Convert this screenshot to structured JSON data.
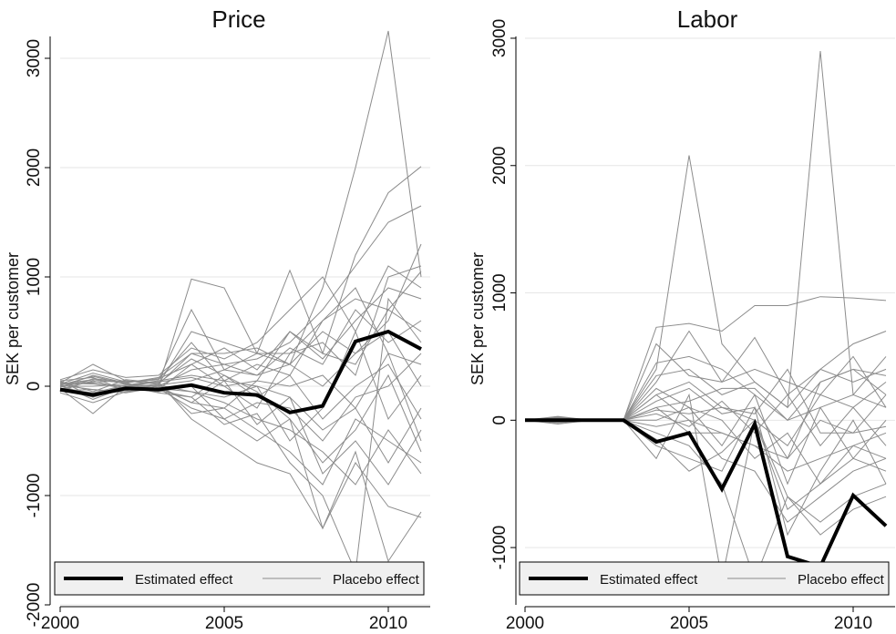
{
  "chart_data": [
    {
      "type": "line",
      "title": "Price",
      "ylabel": "SEK per customer",
      "xlabel": "",
      "x": [
        2000,
        2001,
        2002,
        2003,
        2004,
        2005,
        2006,
        2007,
        2008,
        2009,
        2010,
        2011
      ],
      "xlim": [
        2000,
        2011
      ],
      "ylim": [
        -2000,
        3300
      ],
      "xticks": [
        2000,
        2005,
        2010
      ],
      "yticks": [
        -2000,
        -1000,
        0,
        1000,
        2000,
        3000
      ],
      "grid": true,
      "legend_position": "bottom",
      "series": [
        {
          "name": "Estimated effect",
          "role": "estimated",
          "color": "#000000",
          "values": [
            -30,
            -80,
            -20,
            -30,
            10,
            -60,
            -80,
            -240,
            -180,
            410,
            500,
            340
          ]
        },
        {
          "name": "Placebo effect",
          "role": "placebo",
          "color": "#8c8c8c",
          "values": [
            20,
            120,
            40,
            60,
            700,
            150,
            100,
            200,
            900,
            2000,
            3250,
            1000
          ]
        },
        {
          "values": [
            50,
            -100,
            0,
            0,
            980,
            900,
            300,
            1060,
            300,
            1200,
            1770,
            2010
          ]
        },
        {
          "values": [
            0,
            60,
            30,
            80,
            300,
            200,
            250,
            400,
            700,
            1100,
            1500,
            1650
          ]
        },
        {
          "values": [
            -60,
            -150,
            -50,
            -20,
            -200,
            -300,
            -500,
            -300,
            -1300,
            -600,
            -1600,
            -1150
          ]
        },
        {
          "values": [
            30,
            200,
            50,
            20,
            500,
            400,
            300,
            300,
            600,
            800,
            700,
            1050
          ]
        },
        {
          "values": [
            -20,
            -250,
            0,
            40,
            -300,
            -500,
            -700,
            -800,
            -1300,
            -700,
            -1100,
            -1200
          ]
        },
        {
          "values": [
            10,
            90,
            20,
            -30,
            200,
            350,
            150,
            500,
            250,
            600,
            900,
            800
          ]
        },
        {
          "values": [
            -40,
            -30,
            -60,
            -10,
            -150,
            -200,
            -400,
            -600,
            -900,
            -300,
            -500,
            -700
          ]
        },
        {
          "values": [
            60,
            150,
            80,
            100,
            350,
            250,
            400,
            700,
            1000,
            500,
            1100,
            900
          ]
        },
        {
          "values": [
            0,
            -80,
            10,
            50,
            100,
            50,
            0,
            -100,
            -400,
            -200,
            300,
            -500
          ]
        },
        {
          "values": [
            -10,
            100,
            30,
            -40,
            -100,
            -350,
            -250,
            -700,
            -1000,
            -1700,
            800,
            400
          ]
        },
        {
          "values": [
            20,
            30,
            -20,
            10,
            50,
            150,
            300,
            200,
            500,
            300,
            600,
            1300
          ]
        },
        {
          "values": [
            40,
            -50,
            60,
            30,
            250,
            100,
            -100,
            100,
            -300,
            0,
            200,
            -300
          ]
        },
        {
          "values": [
            -30,
            50,
            -30,
            -20,
            -50,
            -150,
            -300,
            -400,
            -600,
            -900,
            -400,
            -800
          ]
        },
        {
          "values": [
            0,
            0,
            20,
            0,
            150,
            200,
            100,
            350,
            200,
            700,
            400,
            600
          ]
        },
        {
          "values": [
            10,
            -120,
            -10,
            20,
            -250,
            -200,
            50,
            0,
            100,
            -200,
            -700,
            -200
          ]
        },
        {
          "values": [
            -50,
            70,
            40,
            60,
            400,
            50,
            200,
            100,
            600,
            900,
            300,
            200
          ]
        },
        {
          "values": [
            30,
            20,
            0,
            -60,
            -100,
            100,
            -50,
            -300,
            -700,
            -400,
            100,
            -600
          ]
        },
        {
          "values": [
            -20,
            -60,
            10,
            40,
            80,
            0,
            -200,
            300,
            400,
            100,
            1000,
            1100
          ]
        },
        {
          "values": [
            50,
            80,
            -40,
            10,
            -50,
            -100,
            0,
            -500,
            -200,
            500,
            -300,
            100
          ]
        },
        {
          "values": [
            0,
            40,
            50,
            20,
            300,
            300,
            350,
            200,
            0,
            300,
            500,
            0
          ]
        },
        {
          "values": [
            -30,
            -100,
            -20,
            -50,
            0,
            -300,
            -150,
            -200,
            -500,
            -100,
            0,
            300
          ]
        },
        {
          "values": [
            20,
            60,
            30,
            70,
            200,
            0,
            50,
            500,
            300,
            200,
            700,
            500
          ]
        },
        {
          "values": [
            10,
            -30,
            -50,
            0,
            -150,
            50,
            -350,
            -100,
            -800,
            -500,
            -900,
            -400
          ]
        }
      ]
    },
    {
      "type": "line",
      "title": "Labor",
      "ylabel": "SEK per customer",
      "xlabel": "",
      "x": [
        2000,
        2001,
        2002,
        2003,
        2004,
        2005,
        2006,
        2007,
        2008,
        2009,
        2010,
        2011
      ],
      "xlim": [
        2000,
        2011
      ],
      "ylim": [
        -1450,
        3100
      ],
      "xticks": [
        2000,
        2005,
        2010
      ],
      "yticks": [
        -1000,
        0,
        1000,
        2000,
        3000
      ],
      "grid": true,
      "legend_position": "bottom",
      "series": [
        {
          "name": "Estimated effect",
          "role": "estimated",
          "color": "#000000",
          "values": [
            0,
            0,
            0,
            0,
            -170,
            -100,
            -540,
            -30,
            -1070,
            -1150,
            -590,
            -830
          ]
        },
        {
          "name": "Placebo effect",
          "role": "placebo",
          "color": "#8c8c8c",
          "values": [
            0,
            20,
            0,
            0,
            400,
            2080,
            600,
            300,
            100,
            2900,
            200,
            500
          ]
        },
        {
          "values": [
            0,
            -30,
            0,
            0,
            730,
            760,
            700,
            900,
            900,
            970,
            960,
            940
          ]
        },
        {
          "values": [
            0,
            10,
            0,
            0,
            300,
            700,
            300,
            650,
            200,
            400,
            600,
            700
          ]
        },
        {
          "values": [
            0,
            -20,
            0,
            0,
            -300,
            200,
            -1250,
            0,
            -700,
            -500,
            -300,
            -400
          ]
        },
        {
          "values": [
            0,
            30,
            0,
            0,
            450,
            500,
            400,
            200,
            0,
            300,
            400,
            350
          ]
        },
        {
          "values": [
            0,
            0,
            0,
            0,
            -100,
            -200,
            -500,
            -1250,
            -600,
            -800,
            -600,
            -500
          ]
        },
        {
          "values": [
            0,
            15,
            0,
            0,
            200,
            300,
            100,
            0,
            -200,
            200,
            100,
            300
          ]
        },
        {
          "values": [
            0,
            -10,
            0,
            0,
            100,
            -100,
            -100,
            -200,
            -400,
            -300,
            -200,
            -100
          ]
        },
        {
          "values": [
            0,
            20,
            0,
            0,
            350,
            400,
            200,
            300,
            100,
            400,
            300,
            400
          ]
        },
        {
          "values": [
            0,
            -15,
            0,
            0,
            -50,
            0,
            -300,
            -400,
            -800,
            -600,
            -400,
            -300
          ]
        },
        {
          "values": [
            0,
            5,
            0,
            0,
            150,
            250,
            50,
            100,
            -300,
            0,
            -100,
            200
          ]
        },
        {
          "values": [
            0,
            -5,
            0,
            0,
            50,
            -50,
            150,
            -100,
            200,
            -200,
            100,
            -200
          ]
        },
        {
          "values": [
            0,
            10,
            0,
            0,
            250,
            100,
            -200,
            200,
            -500,
            100,
            -300,
            0
          ]
        },
        {
          "values": [
            0,
            -20,
            0,
            0,
            -200,
            -300,
            -400,
            100,
            -900,
            -400,
            0,
            -500
          ]
        },
        {
          "values": [
            0,
            25,
            0,
            0,
            600,
            350,
            300,
            400,
            300,
            200,
            500,
            100
          ]
        },
        {
          "values": [
            0,
            0,
            0,
            0,
            0,
            100,
            0,
            -300,
            -100,
            -500,
            -200,
            -300
          ]
        },
        {
          "values": [
            0,
            -10,
            0,
            0,
            -150,
            -400,
            -250,
            0,
            -600,
            -900,
            -700,
            -600
          ]
        },
        {
          "values": [
            0,
            15,
            0,
            0,
            100,
            150,
            250,
            250,
            0,
            100,
            200,
            100
          ]
        },
        {
          "values": [
            0,
            5,
            0,
            0,
            200,
            0,
            -100,
            -200,
            -300,
            300,
            400,
            200
          ]
        },
        {
          "values": [
            0,
            -5,
            0,
            0,
            80,
            50,
            100,
            50,
            400,
            -100,
            -100,
            -50
          ]
        }
      ]
    }
  ]
}
